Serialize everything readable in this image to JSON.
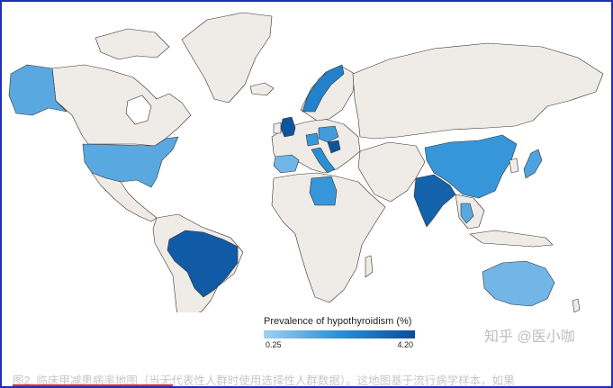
{
  "legend": {
    "title": "Prevalence of hypothyroidism (%)",
    "min_label": "0.25",
    "max_label": "4.20",
    "min_value": 0.25,
    "max_value": 4.2,
    "color_low": "#9fd0f0",
    "color_mid": "#2b8fd6",
    "color_high": "#0a4e9a"
  },
  "colors": {
    "no_data": "#efebe6",
    "border": "#333333",
    "frame": "#1e2fb8",
    "caption_underline": "#d8322f"
  },
  "countries": [
    {
      "name": "Alaska",
      "level": 0.3
    },
    {
      "name": "United States",
      "level": 0.3
    },
    {
      "name": "Brazil",
      "level": 0.9
    },
    {
      "name": "United Kingdom",
      "level": 0.95
    },
    {
      "name": "Norway",
      "level": 0.6
    },
    {
      "name": "Poland",
      "level": 0.4
    },
    {
      "name": "Serbia",
      "level": 0.95
    },
    {
      "name": "Italy",
      "level": 0.5
    },
    {
      "name": "Spain",
      "level": 0.2
    },
    {
      "name": "Libya",
      "level": 0.45
    },
    {
      "name": "China",
      "level": 0.45
    },
    {
      "name": "India",
      "level": 0.85
    },
    {
      "name": "Japan",
      "level": 0.35
    },
    {
      "name": "Thailand",
      "level": 0.3
    },
    {
      "name": "Australia",
      "level": 0.2
    }
  ],
  "watermark": "知乎 @医小咖",
  "caption": "图2. 临床甲减患病率地图（当无代表性人群时使用选择性人群数据）。这地图基于流行病学样本，如果"
}
